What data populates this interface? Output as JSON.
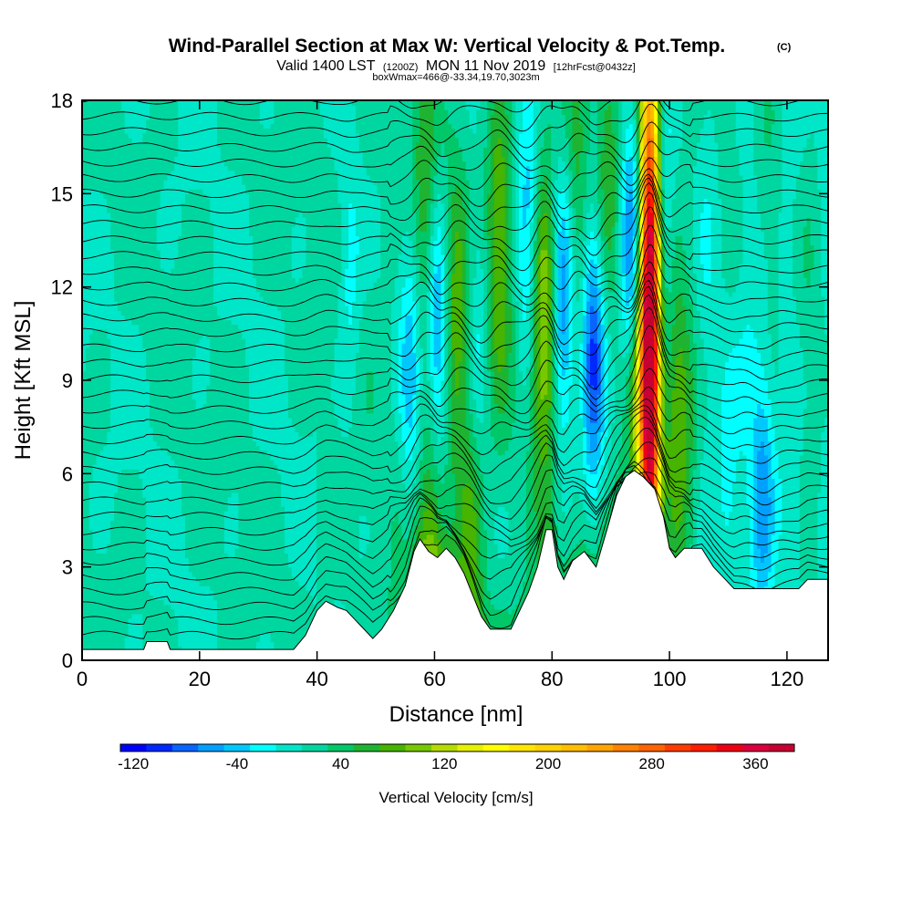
{
  "chart_data": {
    "type": "heatmap",
    "title": "Wind-Parallel Section at Max W: Vertical Velocity & Pot.Temp.",
    "title_mark": "(C)",
    "subtitle_parts": [
      "Valid 1400 LST",
      "(1200Z)",
      "MON 11 Nov 2019",
      "[12hrFcst@0432z]"
    ],
    "info_line": "boxWmax=466@-33.34,19.70,3023m",
    "xlabel": "Distance [nm]",
    "ylabel": "Height [Kft MSL]",
    "xlim": [
      0,
      127
    ],
    "ylim": [
      0,
      18
    ],
    "x_ticks": [
      0,
      20,
      40,
      60,
      80,
      100,
      120
    ],
    "y_ticks": [
      0,
      3,
      6,
      9,
      12,
      15,
      18
    ],
    "colorbar": {
      "label": "Vertical Velocity [cm/s]",
      "min": -130,
      "max": 390,
      "step": 20,
      "tick_values": [
        -120,
        -40,
        40,
        120,
        200,
        280,
        360
      ],
      "tick_labels": [
        "-120",
        "-40",
        "40",
        "120",
        "200",
        "280",
        "360"
      ],
      "colors": [
        "#0000ff",
        "#0028ff",
        "#0a64ff",
        "#00a0ff",
        "#00c8ff",
        "#00ffff",
        "#00e6c8",
        "#00d7a0",
        "#00c869",
        "#1eb432",
        "#46b400",
        "#78c800",
        "#b4dc00",
        "#e6f000",
        "#ffff00",
        "#ffe600",
        "#ffd200",
        "#ffbe00",
        "#ffa500",
        "#ff8200",
        "#ff6400",
        "#ff3c00",
        "#ff1e00",
        "#f00014",
        "#dc003c",
        "#c80032"
      ]
    },
    "updraft_cores": [
      {
        "x": 96.7,
        "z": 10.8,
        "w": 420
      },
      {
        "x": 94.5,
        "z": 8.0,
        "w": 90
      },
      {
        "x": 101.5,
        "z": 7.5,
        "w": 70
      },
      {
        "x": 78.5,
        "z": 11.0,
        "w": 110
      },
      {
        "x": 71.0,
        "z": 13.5,
        "w": 80
      },
      {
        "x": 63.5,
        "z": 10.5,
        "w": 70
      },
      {
        "x": 59.5,
        "z": 3.8,
        "w": 75
      },
      {
        "x": 66.5,
        "z": 4.5,
        "w": 60
      },
      {
        "x": 58.5,
        "z": 14.0,
        "w": 60
      },
      {
        "x": 84.0,
        "z": 14.0,
        "w": 50
      },
      {
        "x": 89.5,
        "z": 16.0,
        "w": 45
      }
    ],
    "downdraft_cores": [
      {
        "x": 93.5,
        "z": 13.0,
        "w": -110
      },
      {
        "x": 87.0,
        "z": 10.0,
        "w": -110
      },
      {
        "x": 82.0,
        "z": 11.5,
        "w": -95
      },
      {
        "x": 76.0,
        "z": 13.5,
        "w": -70
      },
      {
        "x": 60.5,
        "z": 10.5,
        "w": -100
      },
      {
        "x": 56.0,
        "z": 9.5,
        "w": -60
      },
      {
        "x": 67.5,
        "z": 10.0,
        "w": -50
      },
      {
        "x": 45.5,
        "z": 12.0,
        "w": -35
      },
      {
        "x": 116.0,
        "z": 5.0,
        "w": -75
      },
      {
        "x": 110.0,
        "z": 5.5,
        "w": -45
      },
      {
        "x": 98.5,
        "z": 14.0,
        "w": -60
      }
    ],
    "terrain_profile": [
      {
        "x": 0,
        "z": 0.35
      },
      {
        "x": 10.5,
        "z": 0.35
      },
      {
        "x": 11,
        "z": 0.6
      },
      {
        "x": 14.5,
        "z": 0.6
      },
      {
        "x": 15,
        "z": 0.35
      },
      {
        "x": 36,
        "z": 0.35
      },
      {
        "x": 38,
        "z": 0.8
      },
      {
        "x": 40,
        "z": 1.6
      },
      {
        "x": 41.5,
        "z": 1.9
      },
      {
        "x": 43.5,
        "z": 1.7
      },
      {
        "x": 45,
        "z": 1.6
      },
      {
        "x": 46.5,
        "z": 1.3
      },
      {
        "x": 48,
        "z": 1.0
      },
      {
        "x": 49.5,
        "z": 0.7
      },
      {
        "x": 51,
        "z": 1.0
      },
      {
        "x": 53,
        "z": 1.6
      },
      {
        "x": 55,
        "z": 2.4
      },
      {
        "x": 56.5,
        "z": 3.5
      },
      {
        "x": 57.5,
        "z": 3.9
      },
      {
        "x": 59,
        "z": 3.5
      },
      {
        "x": 60.5,
        "z": 3.3
      },
      {
        "x": 62,
        "z": 3.6
      },
      {
        "x": 63.5,
        "z": 3.3
      },
      {
        "x": 65,
        "z": 2.8
      },
      {
        "x": 66.5,
        "z": 2.1
      },
      {
        "x": 68,
        "z": 1.4
      },
      {
        "x": 69.5,
        "z": 1.0
      },
      {
        "x": 73,
        "z": 1.0
      },
      {
        "x": 74.5,
        "z": 1.6
      },
      {
        "x": 76,
        "z": 2.2
      },
      {
        "x": 77.5,
        "z": 3.0
      },
      {
        "x": 79,
        "z": 4.2
      },
      {
        "x": 80,
        "z": 4.2
      },
      {
        "x": 81,
        "z": 3.0
      },
      {
        "x": 82,
        "z": 2.6
      },
      {
        "x": 83.5,
        "z": 3.2
      },
      {
        "x": 85.5,
        "z": 3.5
      },
      {
        "x": 87.5,
        "z": 3.0
      },
      {
        "x": 89.5,
        "z": 4.3
      },
      {
        "x": 91,
        "z": 5.3
      },
      {
        "x": 92.5,
        "z": 5.9
      },
      {
        "x": 94,
        "z": 6.1
      },
      {
        "x": 95.5,
        "z": 5.9
      },
      {
        "x": 97.5,
        "z": 5.5
      },
      {
        "x": 99,
        "z": 4.6
      },
      {
        "x": 100,
        "z": 3.6
      },
      {
        "x": 101,
        "z": 3.3
      },
      {
        "x": 102.5,
        "z": 3.6
      },
      {
        "x": 105.5,
        "z": 3.6
      },
      {
        "x": 107.5,
        "z": 3.0
      },
      {
        "x": 109.5,
        "z": 2.6
      },
      {
        "x": 111,
        "z": 2.3
      },
      {
        "x": 122,
        "z": 2.3
      },
      {
        "x": 123.5,
        "z": 2.6
      },
      {
        "x": 127,
        "z": 2.6
      }
    ],
    "theta_line_count": 36
  }
}
